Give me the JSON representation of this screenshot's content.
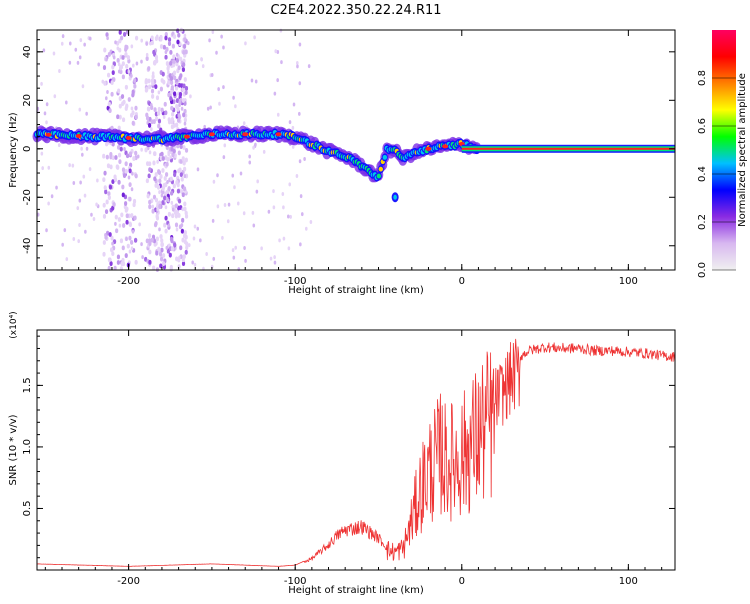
{
  "title": "C2E4.2022.350.22.24.R11",
  "chart_data": [
    {
      "type": "heatmap",
      "xlabel": "Height of straight line (km)",
      "ylabel": "Frequency (Hz)",
      "xlim": [
        -255,
        128
      ],
      "ylim": [
        -50,
        49
      ],
      "x_ticks": [
        -200,
        -100,
        0,
        100
      ],
      "y_ticks": [
        -40,
        -20,
        0,
        20,
        40
      ],
      "colorbar": {
        "label": "Normalized spectral amplitude",
        "range": [
          0,
          1
        ],
        "ticks": [
          "0.0",
          "0.2",
          "0.4",
          "0.6",
          "0.8"
        ],
        "colormap": [
          "#f0f0f0",
          "#d8b8f0",
          "#8a2be2",
          "#0000ff",
          "#00c0ff",
          "#00ff00",
          "#ffff00",
          "#ff8000",
          "#ff0000",
          "#ff0060"
        ]
      },
      "ridge": {
        "x": [
          -255,
          -220,
          -180,
          -150,
          -120,
          -110,
          -100,
          -90,
          -80,
          -70,
          -60,
          -50,
          -45,
          -40,
          -35,
          -30,
          -20,
          -10,
          0,
          10,
          50,
          100,
          128
        ],
        "y": [
          6,
          5,
          4,
          6,
          6,
          6,
          5,
          2,
          -1,
          -3,
          -7,
          -12,
          0,
          -1,
          -4,
          -2,
          0,
          1,
          2,
          0,
          0,
          0,
          0
        ]
      },
      "spot": {
        "x": -40,
        "y": -20
      },
      "scatter_bands_x": [
        [
          -215,
          -195
        ],
        [
          -190,
          -175
        ],
        [
          -175,
          -165
        ]
      ],
      "grid": false
    },
    {
      "type": "line",
      "xlabel": "Height of straight line (km)",
      "ylabel": "SNR (10 * v/v)",
      "multiplier": "(x10⁴)",
      "xlim": [
        -255,
        128
      ],
      "ylim": [
        0,
        1.95
      ],
      "x_ticks": [
        -200,
        -100,
        0,
        100
      ],
      "y_ticks": [
        0.5,
        1.0,
        1.5
      ],
      "y_tick_labels": [
        "0.5",
        "1.0",
        "1.5"
      ],
      "color": "#ee3333",
      "x": [
        -255,
        -200,
        -150,
        -110,
        -100,
        -90,
        -80,
        -75,
        -70,
        -60,
        -50,
        -45,
        -40,
        -35,
        -30,
        -25,
        -20,
        -15,
        -12,
        -10,
        -5,
        0,
        5,
        10,
        15,
        20,
        25,
        30,
        40,
        50,
        60,
        70,
        80,
        90,
        100,
        110,
        120,
        128
      ],
      "y": [
        0.05,
        0.03,
        0.05,
        0.03,
        0.04,
        0.1,
        0.22,
        0.3,
        0.35,
        0.38,
        0.28,
        0.2,
        0.18,
        0.22,
        0.5,
        0.8,
        1.0,
        1.1,
        1.2,
        1.1,
        1.1,
        1.15,
        1.25,
        1.35,
        1.45,
        1.5,
        1.58,
        1.7,
        1.8,
        1.83,
        1.82,
        1.82,
        1.8,
        1.8,
        1.79,
        1.78,
        1.76,
        1.75
      ],
      "grid": false
    }
  ]
}
